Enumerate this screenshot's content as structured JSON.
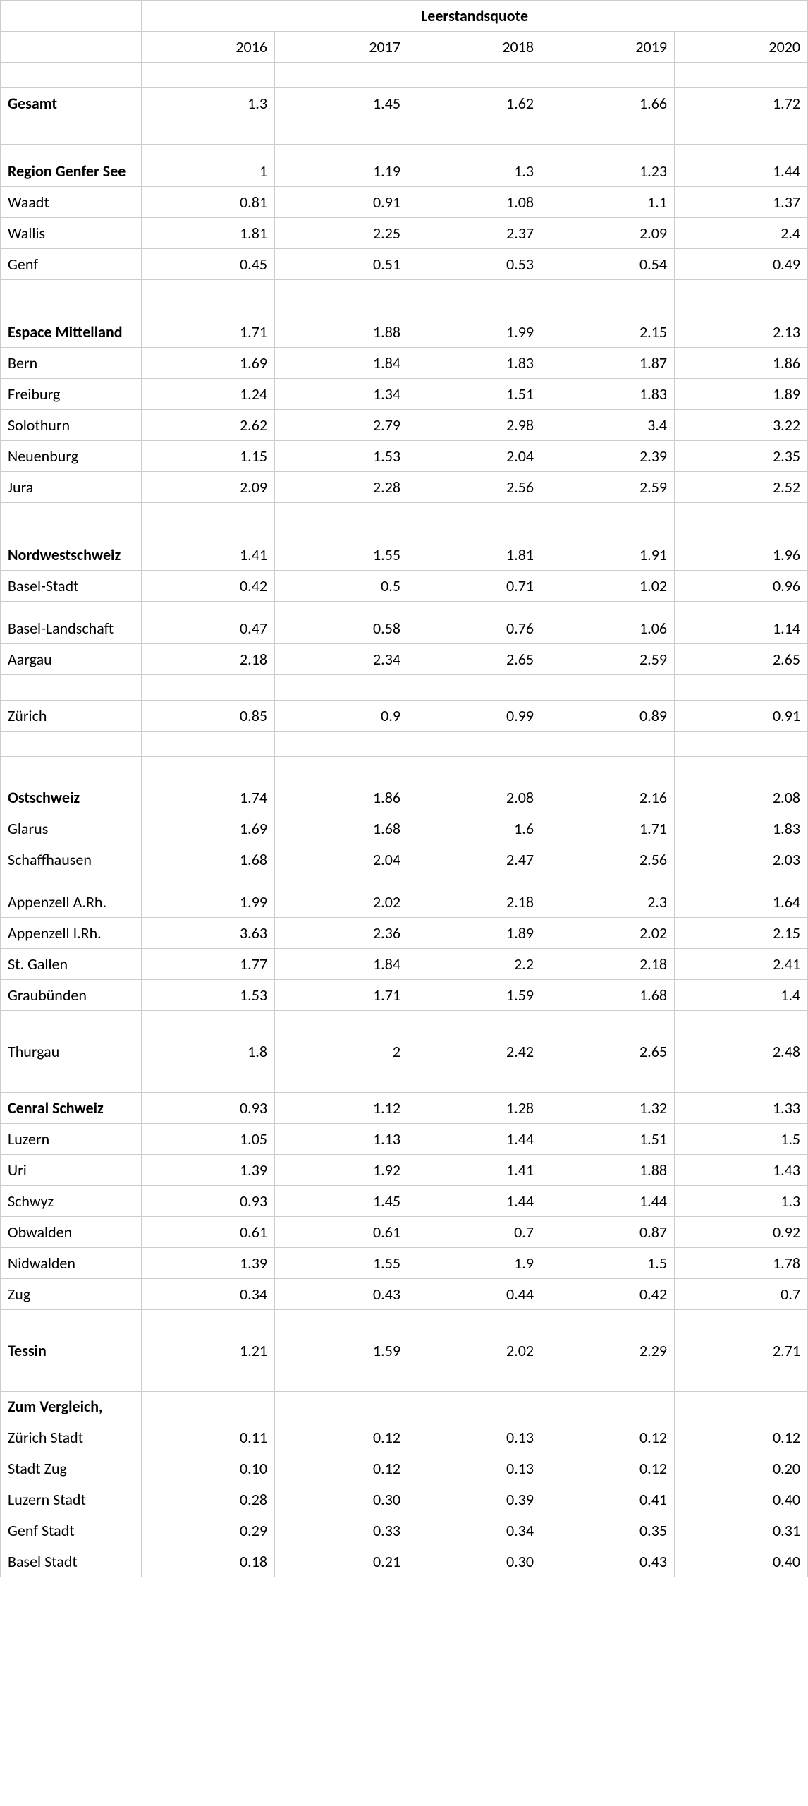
{
  "table": {
    "type": "table",
    "title": "Leerstandsquote",
    "years": [
      "2016",
      "2017",
      "2018",
      "2019",
      "2020"
    ],
    "background_color": "#ffffff",
    "border_color": "#cccccc",
    "text_color": "#000000",
    "font_family": "Calibri, Arial, sans-serif",
    "font_size_pt": 11,
    "label_col_width": 200,
    "value_col_width": 189,
    "rows": [
      {
        "type": "year_header"
      },
      {
        "type": "spacer"
      },
      {
        "label": "Gesamt",
        "bold": true,
        "values": [
          "1.3",
          "1.45",
          "1.62",
          "1.66",
          "1.72"
        ]
      },
      {
        "type": "spacer"
      },
      {
        "label": "Region Genfer See",
        "bold": true,
        "tall": true,
        "values": [
          "1",
          "1.19",
          "1.3",
          "1.23",
          "1.44"
        ]
      },
      {
        "label": "Waadt",
        "values": [
          "0.81",
          "0.91",
          "1.08",
          "1.1",
          "1.37"
        ]
      },
      {
        "label": "Wallis",
        "values": [
          "1.81",
          "2.25",
          "2.37",
          "2.09",
          "2.4"
        ]
      },
      {
        "label": "Genf",
        "values": [
          "0.45",
          "0.51",
          "0.53",
          "0.54",
          "0.49"
        ]
      },
      {
        "type": "spacer"
      },
      {
        "label": "Espace Mittelland",
        "bold": true,
        "tall": true,
        "values": [
          "1.71",
          "1.88",
          "1.99",
          "2.15",
          "2.13"
        ]
      },
      {
        "label": "Bern",
        "values": [
          "1.69",
          "1.84",
          "1.83",
          "1.87",
          "1.86"
        ]
      },
      {
        "label": "Freiburg",
        "values": [
          "1.24",
          "1.34",
          "1.51",
          "1.83",
          "1.89"
        ]
      },
      {
        "label": "Solothurn",
        "values": [
          "2.62",
          "2.79",
          "2.98",
          "3.4",
          "3.22"
        ]
      },
      {
        "label": "Neuenburg",
        "values": [
          "1.15",
          "1.53",
          "2.04",
          "2.39",
          "2.35"
        ]
      },
      {
        "label": "Jura",
        "values": [
          "2.09",
          "2.28",
          "2.56",
          "2.59",
          "2.52"
        ]
      },
      {
        "type": "spacer"
      },
      {
        "label": "Nordwestschweiz",
        "bold": true,
        "tall": true,
        "values": [
          "1.41",
          "1.55",
          "1.81",
          "1.91",
          "1.96"
        ]
      },
      {
        "label": "Basel-Stadt",
        "values": [
          "0.42",
          "0.5",
          "0.71",
          "1.02",
          "0.96"
        ]
      },
      {
        "label": "Basel-Landschaft",
        "tall": true,
        "values": [
          "0.47",
          "0.58",
          "0.76",
          "1.06",
          "1.14"
        ]
      },
      {
        "label": "Aargau",
        "values": [
          "2.18",
          "2.34",
          "2.65",
          "2.59",
          "2.65"
        ]
      },
      {
        "type": "spacer"
      },
      {
        "label": "Zürich",
        "values": [
          "0.85",
          "0.9",
          "0.99",
          "0.89",
          "0.91"
        ]
      },
      {
        "type": "spacer"
      },
      {
        "type": "spacer"
      },
      {
        "label": "Ostschweiz",
        "bold": true,
        "values": [
          "1.74",
          "1.86",
          "2.08",
          "2.16",
          "2.08"
        ]
      },
      {
        "label": "Glarus",
        "values": [
          "1.69",
          "1.68",
          "1.6",
          "1.71",
          "1.83"
        ]
      },
      {
        "label": "Schaffhausen",
        "values": [
          "1.68",
          "2.04",
          "2.47",
          "2.56",
          "2.03"
        ]
      },
      {
        "label": "Appenzell A.Rh.",
        "tall": true,
        "values": [
          "1.99",
          "2.02",
          "2.18",
          "2.3",
          "1.64"
        ]
      },
      {
        "label": "Appenzell I.Rh.",
        "values": [
          "3.63",
          "2.36",
          "1.89",
          "2.02",
          "2.15"
        ]
      },
      {
        "label": "St. Gallen",
        "values": [
          "1.77",
          "1.84",
          "2.2",
          "2.18",
          "2.41"
        ]
      },
      {
        "label": "Graubünden",
        "values": [
          "1.53",
          "1.71",
          "1.59",
          "1.68",
          "1.4"
        ]
      },
      {
        "type": "spacer"
      },
      {
        "label": "Thurgau",
        "values": [
          "1.8",
          "2",
          "2.42",
          "2.65",
          "2.48"
        ]
      },
      {
        "type": "spacer"
      },
      {
        "label": "Cenral Schweiz",
        "bold": true,
        "values": [
          "0.93",
          "1.12",
          "1.28",
          "1.32",
          "1.33"
        ]
      },
      {
        "label": "Luzern",
        "values": [
          "1.05",
          "1.13",
          "1.44",
          "1.51",
          "1.5"
        ]
      },
      {
        "label": "Uri",
        "values": [
          "1.39",
          "1.92",
          "1.41",
          "1.88",
          "1.43"
        ]
      },
      {
        "label": "Schwyz",
        "values": [
          "0.93",
          "1.45",
          "1.44",
          "1.44",
          "1.3"
        ]
      },
      {
        "label": "Obwalden",
        "values": [
          "0.61",
          "0.61",
          "0.7",
          "0.87",
          "0.92"
        ]
      },
      {
        "label": "Nidwalden",
        "values": [
          "1.39",
          "1.55",
          "1.9",
          "1.5",
          "1.78"
        ]
      },
      {
        "label": "Zug",
        "values": [
          "0.34",
          "0.43",
          "0.44",
          "0.42",
          "0.7"
        ]
      },
      {
        "type": "spacer"
      },
      {
        "label": "Tessin",
        "bold": true,
        "values": [
          "1.21",
          "1.59",
          "2.02",
          "2.29",
          "2.71"
        ]
      },
      {
        "type": "spacer"
      },
      {
        "label": "Zum Vergleich,",
        "bold": true,
        "values": [
          "",
          "",
          "",
          "",
          ""
        ]
      },
      {
        "label": "Zürich Stadt",
        "values": [
          "0.11",
          "0.12",
          "0.13",
          "0.12",
          "0.12"
        ]
      },
      {
        "label": "Stadt Zug",
        "values": [
          "0.10",
          "0.12",
          "0.13",
          "0.12",
          "0.20"
        ]
      },
      {
        "label": "Luzern Stadt",
        "values": [
          "0.28",
          "0.30",
          "0.39",
          "0.41",
          "0.40"
        ]
      },
      {
        "label": "Genf Stadt",
        "values": [
          "0.29",
          "0.33",
          "0.34",
          "0.35",
          "0.31"
        ]
      },
      {
        "label": "Basel Stadt",
        "values": [
          "0.18",
          "0.21",
          "0.30",
          "0.43",
          "0.40"
        ]
      }
    ]
  }
}
